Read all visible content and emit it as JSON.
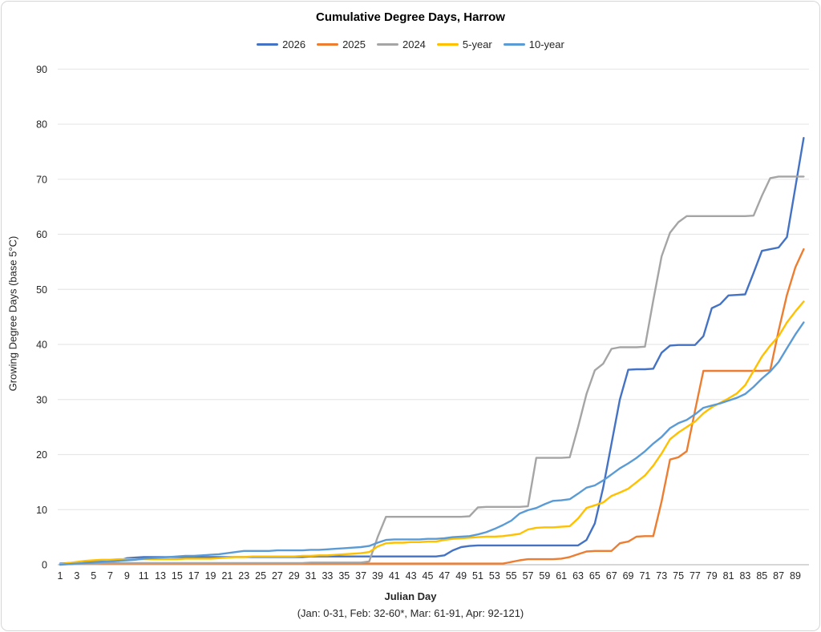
{
  "title": "Cumulative Degree Days, Harrow",
  "y_axis": {
    "title": "Growing Degree Days (base 5°C)",
    "min": 0,
    "max": 90,
    "step": 10
  },
  "x_axis": {
    "title": "Julian Day",
    "subtitle": "(Jan: 0-31, Feb: 32-60*, Mar: 61-91, Apr: 92-121)",
    "tick_start": 1,
    "tick_end": 89,
    "tick_step": 2
  },
  "colors": {
    "grid": "#e7e7e7",
    "axis": "#bfbfbf",
    "text": "#262626"
  },
  "chart_data": {
    "type": "line",
    "title": "Cumulative Degree Days, Harrow",
    "xlabel": "Julian Day",
    "ylabel": "Growing Degree Days (base 5°C)",
    "x_range": [
      1,
      90
    ],
    "ylim": [
      0,
      90
    ],
    "grid": "horizontal",
    "legend_position": "top",
    "series": [
      {
        "name": "2026",
        "color": "#4472C4",
        "values": [
          0.2,
          0.3,
          0.4,
          0.5,
          0.5,
          0.6,
          0.6,
          0.7,
          1.2,
          1.3,
          1.4,
          1.4,
          1.4,
          1.4,
          1.4,
          1.4,
          1.4,
          1.4,
          1.4,
          1.4,
          1.4,
          1.4,
          1.4,
          1.4,
          1.4,
          1.4,
          1.4,
          1.4,
          1.4,
          1.4,
          1.5,
          1.5,
          1.5,
          1.5,
          1.5,
          1.5,
          1.5,
          1.5,
          1.5,
          1.5,
          1.5,
          1.5,
          1.5,
          1.5,
          1.5,
          1.5,
          1.7,
          2.6,
          3.2,
          3.4,
          3.5,
          3.5,
          3.5,
          3.5,
          3.5,
          3.5,
          3.5,
          3.5,
          3.5,
          3.5,
          3.5,
          3.5,
          3.5,
          4.5,
          7.5,
          14.0,
          22.0,
          30.0,
          35.4,
          35.5,
          35.5,
          35.6,
          38.5,
          39.8,
          39.9,
          39.9,
          39.9,
          41.5,
          46.6,
          47.3,
          48.9,
          49.0,
          49.1,
          53.0,
          57.0,
          57.3,
          57.6,
          59.5,
          68.5,
          77.5
        ]
      },
      {
        "name": "2025",
        "color": "#ED7D31",
        "values": [
          0.1,
          0.1,
          0.2,
          0.2,
          0.2,
          0.2,
          0.2,
          0.2,
          0.2,
          0.2,
          0.2,
          0.2,
          0.2,
          0.2,
          0.2,
          0.2,
          0.2,
          0.2,
          0.2,
          0.2,
          0.2,
          0.2,
          0.2,
          0.2,
          0.2,
          0.2,
          0.2,
          0.2,
          0.2,
          0.2,
          0.2,
          0.2,
          0.2,
          0.2,
          0.2,
          0.2,
          0.2,
          0.2,
          0.2,
          0.2,
          0.2,
          0.2,
          0.2,
          0.2,
          0.2,
          0.2,
          0.2,
          0.2,
          0.2,
          0.2,
          0.2,
          0.2,
          0.2,
          0.2,
          0.5,
          0.8,
          1.0,
          1.0,
          1.0,
          1.0,
          1.1,
          1.4,
          1.9,
          2.4,
          2.5,
          2.5,
          2.5,
          3.9,
          4.2,
          5.1,
          5.2,
          5.2,
          11.5,
          19.1,
          19.5,
          20.6,
          28.0,
          35.2,
          35.2,
          35.2,
          35.2,
          35.2,
          35.2,
          35.2,
          35.2,
          35.3,
          42.5,
          49.0,
          54.0,
          57.3
        ]
      },
      {
        "name": "2024",
        "color": "#A5A5A5",
        "values": [
          0.1,
          0.1,
          0.2,
          0.2,
          0.2,
          0.3,
          0.3,
          0.3,
          0.3,
          0.3,
          0.3,
          0.3,
          0.3,
          0.3,
          0.3,
          0.3,
          0.3,
          0.3,
          0.3,
          0.3,
          0.3,
          0.3,
          0.3,
          0.3,
          0.3,
          0.3,
          0.3,
          0.3,
          0.3,
          0.3,
          0.4,
          0.4,
          0.4,
          0.4,
          0.4,
          0.4,
          0.4,
          0.6,
          5.0,
          8.7,
          8.7,
          8.7,
          8.7,
          8.7,
          8.7,
          8.7,
          8.7,
          8.7,
          8.7,
          8.8,
          10.4,
          10.5,
          10.5,
          10.5,
          10.5,
          10.5,
          10.6,
          19.4,
          19.4,
          19.4,
          19.4,
          19.5,
          25.0,
          31.0,
          35.3,
          36.5,
          39.2,
          39.5,
          39.5,
          39.5,
          39.6,
          48.0,
          56.0,
          60.3,
          62.2,
          63.3,
          63.3,
          63.3,
          63.3,
          63.3,
          63.3,
          63.3,
          63.3,
          63.4,
          67.0,
          70.2,
          70.5,
          70.5,
          70.5,
          70.5
        ]
      },
      {
        "name": "5-year",
        "color": "#FFC000",
        "values": [
          0.1,
          0.3,
          0.5,
          0.7,
          0.8,
          0.9,
          0.9,
          1.0,
          1.0,
          1.0,
          1.0,
          1.0,
          1.0,
          1.0,
          1.0,
          1.1,
          1.1,
          1.1,
          1.1,
          1.2,
          1.3,
          1.4,
          1.4,
          1.5,
          1.5,
          1.5,
          1.5,
          1.5,
          1.5,
          1.6,
          1.6,
          1.7,
          1.7,
          1.8,
          1.9,
          2.0,
          2.1,
          2.3,
          3.3,
          3.9,
          4.0,
          4.0,
          4.1,
          4.1,
          4.2,
          4.2,
          4.5,
          4.7,
          4.8,
          4.9,
          5.0,
          5.1,
          5.1,
          5.2,
          5.4,
          5.6,
          6.4,
          6.7,
          6.8,
          6.8,
          6.9,
          7.0,
          8.4,
          10.3,
          10.8,
          11.3,
          12.5,
          13.1,
          13.8,
          15.0,
          16.2,
          18.0,
          20.2,
          22.8,
          24.0,
          25.0,
          26.0,
          27.5,
          28.6,
          29.4,
          30.2,
          31.1,
          32.6,
          35.2,
          37.8,
          39.8,
          41.5,
          44.0,
          46.0,
          47.8
        ]
      },
      {
        "name": "10-year",
        "color": "#5B9BD5",
        "values": [
          0.0,
          0.1,
          0.2,
          0.3,
          0.4,
          0.5,
          0.6,
          0.7,
          0.8,
          0.9,
          1.1,
          1.2,
          1.3,
          1.4,
          1.5,
          1.6,
          1.6,
          1.7,
          1.8,
          1.9,
          2.1,
          2.3,
          2.5,
          2.5,
          2.5,
          2.5,
          2.6,
          2.6,
          2.6,
          2.6,
          2.7,
          2.7,
          2.8,
          2.9,
          3.0,
          3.1,
          3.2,
          3.4,
          4.0,
          4.5,
          4.6,
          4.6,
          4.6,
          4.6,
          4.7,
          4.7,
          4.8,
          5.0,
          5.1,
          5.2,
          5.5,
          5.9,
          6.5,
          7.2,
          8.0,
          9.3,
          9.9,
          10.3,
          11.0,
          11.6,
          11.7,
          11.9,
          12.9,
          14.0,
          14.4,
          15.3,
          16.4,
          17.5,
          18.4,
          19.4,
          20.6,
          22.0,
          23.2,
          24.8,
          25.7,
          26.3,
          27.3,
          28.5,
          28.9,
          29.3,
          29.8,
          30.3,
          31.0,
          32.3,
          33.8,
          35.1,
          36.8,
          39.3,
          41.8,
          44.0
        ]
      }
    ]
  }
}
